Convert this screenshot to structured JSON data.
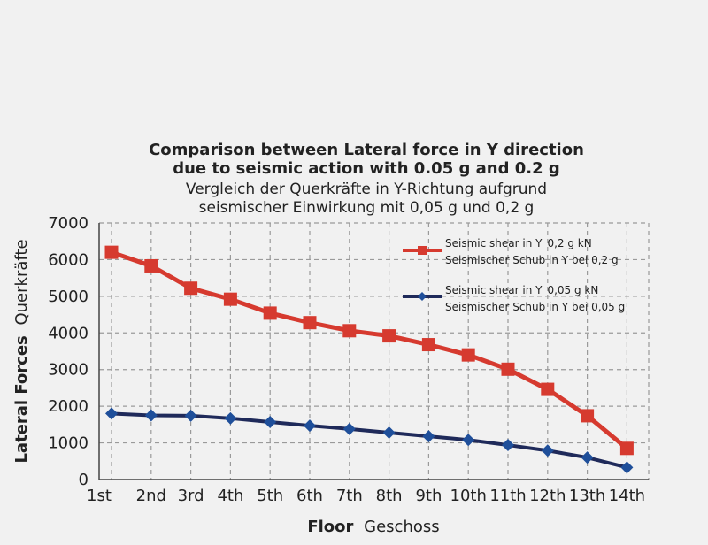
{
  "chart_data": {
    "type": "line",
    "title_en_1": "Comparison between Lateral force in Y direction",
    "title_en_2": "due to seismic action with 0.05 g and 0.2 g",
    "title_de_1": "Vergleich der Querkräfte in Y-Richtung aufgrund",
    "title_de_2": "seismischer Einwirkung mit 0,05 g und 0,2 g",
    "xlabel_en": "Floor",
    "xlabel_de": "Geschoss",
    "ylabel_en": "Lateral Forces",
    "ylabel_de": "Querkräfte",
    "categories": [
      "1st",
      "2nd",
      "3rd",
      "4th",
      "5th",
      "6th",
      "7th",
      "8th",
      "9th",
      "10th",
      "11th",
      "12th",
      "13th",
      "14th"
    ],
    "ylim": [
      0,
      7000
    ],
    "yticks": [
      0,
      1000,
      2000,
      3000,
      4000,
      5000,
      6000,
      7000
    ],
    "grid": true,
    "legend_position": "top-right",
    "series": [
      {
        "name_1": "Seismic shear in Y_0,2 g kN",
        "name_2": "Seismischer Schub in Y bei 0,2 g",
        "color": "#d63a2f",
        "marker": "square",
        "values": [
          6200,
          5830,
          5220,
          4920,
          4540,
          4280,
          4060,
          3920,
          3680,
          3400,
          3010,
          2460,
          1740,
          850
        ]
      },
      {
        "name_1": "Seismic shear in Y_0,05 g kN",
        "name_2": "Seismischer Schub in Y bei 0,05 g",
        "color": "#1f2a5a",
        "marker_color": "#1f4f9a",
        "marker": "diamond",
        "values": [
          1800,
          1750,
          1740,
          1670,
          1570,
          1470,
          1380,
          1280,
          1180,
          1080,
          940,
          790,
          600,
          330
        ]
      }
    ]
  }
}
